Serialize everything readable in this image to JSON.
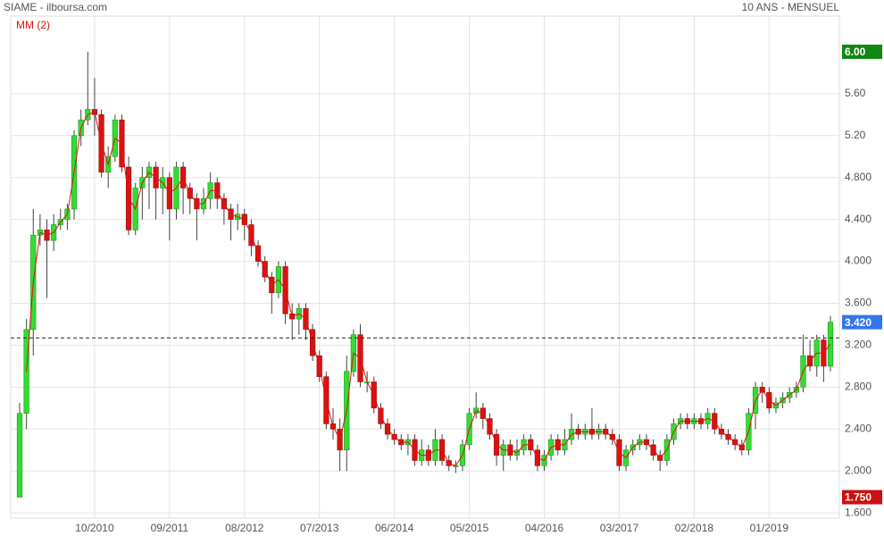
{
  "chart_data": {
    "type": "candlestick",
    "title": "SIAME - ilboursa.com",
    "subtitle": "10 ANS - MENSUEL",
    "indicator": {
      "label": "MM (2)",
      "period": 2,
      "color": "#dd1111"
    },
    "categories": [
      null,
      null,
      null,
      null,
      null,
      null,
      null,
      null,
      null,
      null,
      null,
      "10/2010",
      null,
      null,
      null,
      null,
      null,
      null,
      null,
      null,
      null,
      null,
      "09/2011",
      null,
      null,
      null,
      null,
      null,
      null,
      null,
      null,
      null,
      null,
      "08/2012",
      null,
      null,
      null,
      null,
      null,
      null,
      null,
      null,
      null,
      null,
      "07/2013",
      null,
      null,
      null,
      null,
      null,
      null,
      null,
      null,
      null,
      null,
      "06/2014",
      null,
      null,
      null,
      null,
      null,
      null,
      null,
      null,
      null,
      null,
      "05/2015",
      null,
      null,
      null,
      null,
      null,
      null,
      null,
      null,
      null,
      null,
      "04/2016",
      null,
      null,
      null,
      null,
      null,
      null,
      null,
      null,
      null,
      null,
      "03/2017",
      null,
      null,
      null,
      null,
      null,
      null,
      null,
      null,
      null,
      null,
      "02/2018",
      null,
      null,
      null,
      null,
      null,
      null,
      null,
      null,
      null,
      null,
      "01/2019",
      null,
      null,
      null,
      null,
      null,
      null,
      null,
      null,
      null
    ],
    "open": [
      1.75,
      2.55,
      3.35,
      4.25,
      4.3,
      4.2,
      4.35,
      4.4,
      4.5,
      5.2,
      5.35,
      5.45,
      5.4,
      4.85,
      5.0,
      5.35,
      4.9,
      4.3,
      4.7,
      4.8,
      4.9,
      4.7,
      4.8,
      4.5,
      4.9,
      4.7,
      4.6,
      4.5,
      4.6,
      4.75,
      4.6,
      4.5,
      4.4,
      4.45,
      4.35,
      4.15,
      4.0,
      3.85,
      3.7,
      3.95,
      3.5,
      3.45,
      3.55,
      3.35,
      3.1,
      2.9,
      2.45,
      2.4,
      2.2,
      2.95,
      3.3,
      2.85,
      2.85,
      2.6,
      2.45,
      2.35,
      2.3,
      2.25,
      2.3,
      2.1,
      2.2,
      2.1,
      2.3,
      2.1,
      2.05,
      2.05,
      2.25,
      2.55,
      2.6,
      2.5,
      2.35,
      2.15,
      2.25,
      2.15,
      2.2,
      2.3,
      2.2,
      2.05,
      2.15,
      2.3,
      2.2,
      2.3,
      2.4,
      2.35,
      2.4,
      2.35,
      2.4,
      2.35,
      2.3,
      2.05,
      2.2,
      2.25,
      2.3,
      2.25,
      2.15,
      2.1,
      2.3,
      2.45,
      2.5,
      2.45,
      2.5,
      2.45,
      2.55,
      2.4,
      2.35,
      2.3,
      2.25,
      2.2,
      2.55,
      2.8,
      2.75,
      2.6,
      2.65,
      2.7,
      2.75,
      2.8,
      3.1,
      3.0,
      3.25,
      3.0
    ],
    "high": [
      2.65,
      3.45,
      4.5,
      4.45,
      4.4,
      4.45,
      4.5,
      4.55,
      5.25,
      5.45,
      6.0,
      5.75,
      5.45,
      5.1,
      5.4,
      5.4,
      5.0,
      4.75,
      4.9,
      4.95,
      4.95,
      4.9,
      4.85,
      4.95,
      4.95,
      4.75,
      4.65,
      4.7,
      4.85,
      4.8,
      4.65,
      4.55,
      4.55,
      4.5,
      4.4,
      4.2,
      4.05,
      3.9,
      4.0,
      4.0,
      3.6,
      3.6,
      3.6,
      3.4,
      3.15,
      2.95,
      2.6,
      2.5,
      3.1,
      3.35,
      3.4,
      2.95,
      2.9,
      2.65,
      2.5,
      2.4,
      2.35,
      2.35,
      2.35,
      2.3,
      2.25,
      2.4,
      2.35,
      2.15,
      2.1,
      2.3,
      2.6,
      2.75,
      2.65,
      2.55,
      2.4,
      2.3,
      2.3,
      2.3,
      2.35,
      2.35,
      2.25,
      2.2,
      2.35,
      2.35,
      2.4,
      2.55,
      2.45,
      2.45,
      2.6,
      2.45,
      2.45,
      2.4,
      2.35,
      2.25,
      2.3,
      2.35,
      2.35,
      2.3,
      2.2,
      2.35,
      2.5,
      2.55,
      2.55,
      2.55,
      2.55,
      2.6,
      2.6,
      2.45,
      2.4,
      2.35,
      2.3,
      2.6,
      2.85,
      2.85,
      2.8,
      2.7,
      2.75,
      2.8,
      2.85,
      3.3,
      3.25,
      3.3,
      3.3,
      3.48
    ],
    "low": [
      1.75,
      2.4,
      3.1,
      4.15,
      3.65,
      4.1,
      4.3,
      4.3,
      4.4,
      5.1,
      5.3,
      5.2,
      4.8,
      4.7,
      4.95,
      4.85,
      4.25,
      4.25,
      4.4,
      4.5,
      4.4,
      4.45,
      4.2,
      4.4,
      4.45,
      4.45,
      4.2,
      4.45,
      4.5,
      4.5,
      4.35,
      4.2,
      4.3,
      4.2,
      4.05,
      3.95,
      3.8,
      3.5,
      3.65,
      3.4,
      3.25,
      3.3,
      3.25,
      3.05,
      2.85,
      2.4,
      2.3,
      2.0,
      2.0,
      2.9,
      2.8,
      2.75,
      2.55,
      2.4,
      2.3,
      2.25,
      2.2,
      2.15,
      2.05,
      2.05,
      2.05,
      2.05,
      2.05,
      2.0,
      1.98,
      2.0,
      2.2,
      2.5,
      2.4,
      2.3,
      2.05,
      2.0,
      2.1,
      2.1,
      2.15,
      2.15,
      2.0,
      2.0,
      2.1,
      2.15,
      2.15,
      2.25,
      2.3,
      2.3,
      2.3,
      2.3,
      2.3,
      2.25,
      2.0,
      2.0,
      2.15,
      2.2,
      2.2,
      2.1,
      2.0,
      2.05,
      2.25,
      2.4,
      2.4,
      2.4,
      2.4,
      2.4,
      2.35,
      2.3,
      2.25,
      2.2,
      2.15,
      2.15,
      2.4,
      2.65,
      2.55,
      2.55,
      2.6,
      2.65,
      2.7,
      2.75,
      2.95,
      2.9,
      2.85,
      2.95
    ],
    "close": [
      2.55,
      3.35,
      4.25,
      4.3,
      4.2,
      4.35,
      4.4,
      4.5,
      5.2,
      5.35,
      5.45,
      5.4,
      4.85,
      5.0,
      5.35,
      4.9,
      4.3,
      4.7,
      4.8,
      4.9,
      4.7,
      4.8,
      4.5,
      4.9,
      4.7,
      4.6,
      4.5,
      4.6,
      4.75,
      4.6,
      4.5,
      4.4,
      4.45,
      4.35,
      4.15,
      4.0,
      3.85,
      3.7,
      3.95,
      3.5,
      3.45,
      3.55,
      3.35,
      3.1,
      2.9,
      2.45,
      2.4,
      2.2,
      2.95,
      3.3,
      2.85,
      2.85,
      2.6,
      2.45,
      2.35,
      2.3,
      2.25,
      2.3,
      2.1,
      2.2,
      2.1,
      2.3,
      2.1,
      2.05,
      2.05,
      2.25,
      2.55,
      2.6,
      2.5,
      2.35,
      2.15,
      2.25,
      2.15,
      2.2,
      2.3,
      2.2,
      2.05,
      2.15,
      2.3,
      2.2,
      2.3,
      2.4,
      2.35,
      2.4,
      2.35,
      2.4,
      2.35,
      2.3,
      2.05,
      2.2,
      2.25,
      2.3,
      2.25,
      2.15,
      2.1,
      2.3,
      2.45,
      2.5,
      2.45,
      2.5,
      2.45,
      2.55,
      2.4,
      2.35,
      2.3,
      2.25,
      2.2,
      2.55,
      2.8,
      2.75,
      2.6,
      2.65,
      2.7,
      2.75,
      2.8,
      3.1,
      3.0,
      3.25,
      3.0,
      3.42
    ],
    "up_color": "#33dd33",
    "down_color": "#dd1111",
    "ylim": [
      1.55,
      6.17
    ],
    "yticks": [
      {
        "value": 1.6,
        "label": "1.600"
      },
      {
        "value": 2.0,
        "label": "2.000"
      },
      {
        "value": 2.4,
        "label": "2.400"
      },
      {
        "value": 2.8,
        "label": "2.800"
      },
      {
        "value": 3.2,
        "label": "3.200"
      },
      {
        "value": 3.6,
        "label": "3.600"
      },
      {
        "value": 4.0,
        "label": "4.000"
      },
      {
        "value": 4.4,
        "label": "4.400"
      },
      {
        "value": 4.8,
        "label": "4.800"
      },
      {
        "value": 5.2,
        "label": "5.20"
      },
      {
        "value": 5.6,
        "label": "5.60"
      }
    ],
    "reference_line": 3.27,
    "price_tags": [
      {
        "value": 6.0,
        "label": "6.00",
        "color": "#118811"
      },
      {
        "value": 3.42,
        "label": "3.420",
        "color": "#3377ee"
      },
      {
        "value": 1.75,
        "label": "1.750",
        "color": "#cc1111"
      }
    ],
    "grid": true
  }
}
